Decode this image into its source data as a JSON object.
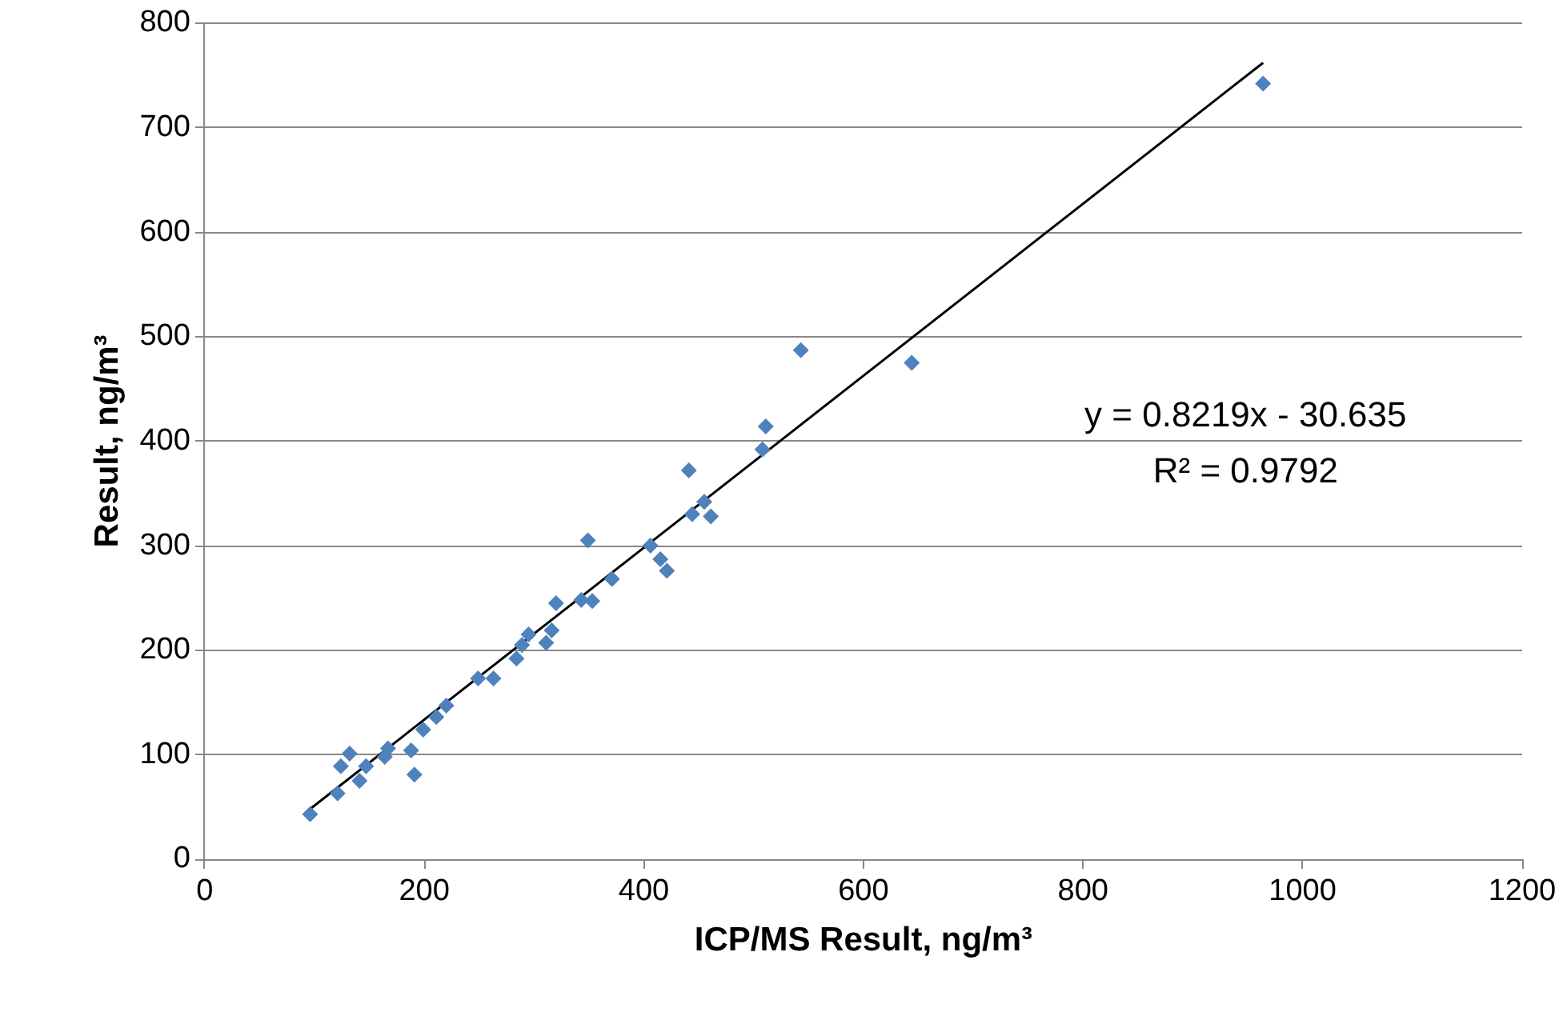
{
  "chart_data": {
    "type": "scatter",
    "xlabel": "ICP/MS Result, ng/m³",
    "ylabel": "Result, ng/m³",
    "xlim": [
      0,
      1200
    ],
    "xticks": [
      0,
      200,
      400,
      600,
      800,
      1000,
      1200
    ],
    "ylim": [
      0,
      800
    ],
    "yticks": [
      0,
      100,
      200,
      300,
      400,
      500,
      600,
      700,
      800
    ],
    "grid": "y",
    "legend": false,
    "marker": "diamond",
    "series": [
      {
        "color": "#4f81bd",
        "x": [
          96,
          121,
          124,
          132,
          141,
          147,
          164,
          167,
          188,
          191,
          199,
          211,
          220,
          249,
          263,
          284,
          289,
          295,
          311,
          316,
          320,
          343,
          349,
          353,
          371,
          406,
          415,
          421,
          441,
          444,
          455,
          461,
          508,
          511,
          543,
          644,
          964
        ],
        "values": [
          43,
          63,
          89,
          101,
          75,
          89,
          98,
          106,
          104,
          81,
          124,
          136,
          147,
          173,
          173,
          192,
          205,
          215,
          207,
          219,
          245,
          248,
          305,
          247,
          268,
          300,
          287,
          276,
          372,
          330,
          342,
          328,
          392,
          414,
          487,
          475,
          742
        ]
      },
      {
        "type": "line",
        "marker": "none",
        "color": "#000000",
        "x": [
          96,
          964
        ],
        "values": [
          48,
          762
        ]
      }
    ],
    "annotations": [
      "y = 0.8219x - 30.635",
      "R² = 0.9792"
    ]
  }
}
